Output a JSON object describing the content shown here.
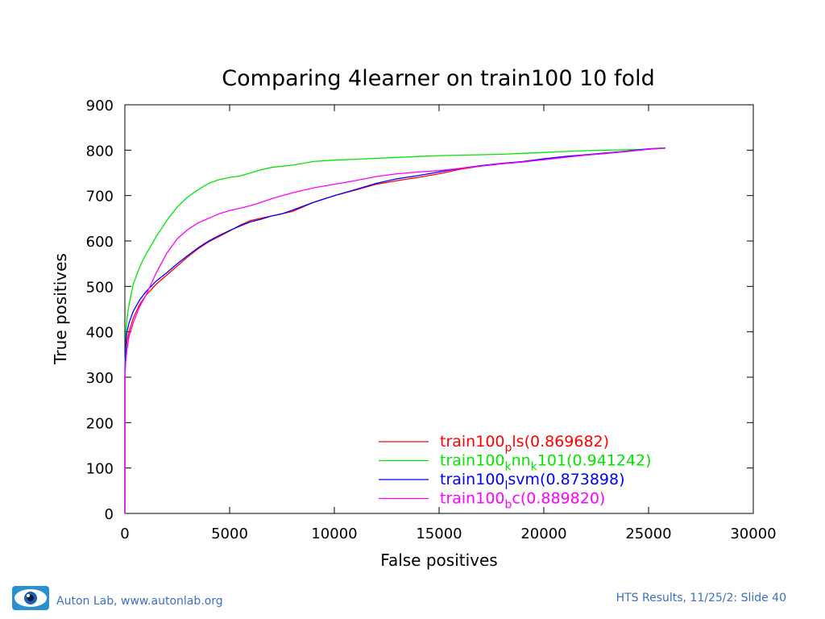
{
  "chart_data": {
    "type": "line",
    "title": "Comparing 4learner on train100 10 fold",
    "xlabel": "False positives",
    "ylabel": "True positives",
    "xlim": [
      0,
      30000
    ],
    "ylim": [
      0,
      900
    ],
    "xticks": [
      0,
      5000,
      10000,
      15000,
      20000,
      25000,
      30000
    ],
    "yticks": [
      0,
      100,
      200,
      300,
      400,
      500,
      600,
      700,
      800,
      900
    ],
    "legend_position": "bottom-right",
    "grid": false,
    "series": [
      {
        "label_main": "train100",
        "label_sub": "p",
        "label_rest": "ls(0.869682)",
        "color": "#ff0000",
        "x": [
          0,
          0,
          50,
          100,
          200,
          400,
          700,
          1000,
          1500,
          2000,
          2500,
          3000,
          3500,
          4000,
          4500,
          5000,
          5500,
          6000,
          6500,
          7000,
          7500,
          8000,
          9000,
          10000,
          11000,
          12000,
          13000,
          14000,
          15000,
          16000,
          17000,
          18000,
          19000,
          20000,
          21000,
          22000,
          23000,
          24000,
          25000,
          25800
        ],
        "y": [
          0,
          300,
          360,
          380,
          400,
          430,
          460,
          480,
          505,
          525,
          545,
          565,
          583,
          598,
          610,
          622,
          635,
          645,
          650,
          655,
          660,
          665,
          685,
          700,
          712,
          725,
          733,
          740,
          748,
          758,
          765,
          770,
          774,
          780,
          785,
          789,
          793,
          798,
          802,
          805
        ]
      },
      {
        "label_main": "train100",
        "label_sub": "k",
        "label_rest": "nn",
        "label_sub2": "k",
        "label_rest2": "101(0.941242)",
        "color": "#00e600",
        "x": [
          0,
          0,
          50,
          100,
          200,
          400,
          600,
          800,
          1000,
          1500,
          2000,
          2500,
          3000,
          3500,
          4000,
          4500,
          5000,
          5500,
          6000,
          6500,
          7000,
          8000,
          9000,
          10000,
          11000,
          12000,
          13000,
          14000,
          15000,
          16000,
          17000,
          18000,
          19000,
          20000,
          21000,
          22000,
          23000,
          24000,
          25000,
          25800
        ],
        "y": [
          0,
          320,
          400,
          430,
          460,
          505,
          530,
          552,
          570,
          610,
          645,
          675,
          697,
          713,
          727,
          735,
          740,
          743,
          750,
          757,
          762,
          767,
          775,
          778,
          780,
          782,
          784,
          786,
          788,
          789,
          790,
          791,
          793,
          795,
          797,
          799,
          800,
          801,
          802,
          804
        ]
      },
      {
        "label_main": "train100",
        "label_sub": "l",
        "label_rest": "svm(0.873898)",
        "color": "#0000ff",
        "x": [
          0,
          0,
          50,
          100,
          200,
          400,
          700,
          1000,
          1500,
          2000,
          2500,
          3000,
          3500,
          4000,
          4500,
          5000,
          5500,
          6000,
          6500,
          7000,
          7500,
          8000,
          9000,
          10000,
          11000,
          12000,
          13000,
          14000,
          15000,
          16000,
          17000,
          18000,
          19000,
          20000,
          21000,
          22000,
          23000,
          24000,
          25000,
          25800
        ],
        "y": [
          0,
          300,
          380,
          400,
          420,
          445,
          470,
          488,
          512,
          530,
          550,
          568,
          585,
          600,
          612,
          623,
          633,
          642,
          648,
          655,
          660,
          668,
          685,
          700,
          713,
          727,
          737,
          744,
          752,
          760,
          766,
          771,
          775,
          781,
          786,
          790,
          794,
          798,
          803,
          805
        ]
      },
      {
        "label_main": "train100",
        "label_sub": "b",
        "label_rest": "c(0.889820)",
        "color": "#ff00ff",
        "x": [
          0,
          0,
          50,
          100,
          200,
          400,
          700,
          1000,
          1500,
          2000,
          2500,
          3000,
          3500,
          4000,
          4500,
          5000,
          5500,
          6000,
          6500,
          7000,
          7500,
          8000,
          9000,
          10000,
          11000,
          12000,
          13000,
          14000,
          15000,
          16000,
          17000,
          18000,
          19000,
          20000,
          21000,
          22000,
          23000,
          24000,
          25000,
          25800
        ],
        "y": [
          0,
          300,
          340,
          360,
          390,
          420,
          455,
          480,
          530,
          573,
          605,
          625,
          640,
          650,
          660,
          667,
          672,
          678,
          685,
          693,
          700,
          706,
          717,
          725,
          733,
          742,
          748,
          752,
          755,
          760,
          765,
          770,
          774,
          779,
          784,
          789,
          793,
          797,
          802,
          805
        ]
      }
    ]
  },
  "footer": {
    "left_text": "Auton Lab, www.autonlab.org",
    "right_text": "HTS Results, 11/25/2: Slide 40",
    "logo_icon": "eye-logo-icon"
  }
}
